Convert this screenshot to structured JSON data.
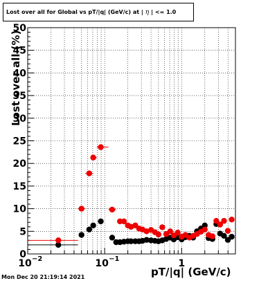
{
  "title_parts": {
    "prefix": "Lost over all for Global vs pT/|q| (GeV/c) at |",
    "symbol": "η",
    "suffix": "| <= 1.0"
  },
  "footer": {
    "datestamp": "Mon Dec 20 21:19:14 2021"
  },
  "colors": {
    "red": "#ee0000",
    "black": "#000000",
    "grid": "#000000"
  },
  "chart_data": {
    "type": "scatter",
    "title": "Lost over all for Global vs pT/|q| (GeV/c) at | η | <= 1.0",
    "xlabel": "pT/|q| (GeV/c)",
    "ylabel": "Lost over all (%)",
    "xscale": "log",
    "xlim": [
      0.01,
      5.0
    ],
    "ylim": [
      0,
      50
    ],
    "grid": true,
    "x_ticks": [
      {
        "value": 0.01,
        "label": "10",
        "exp": "−2"
      },
      {
        "value": 0.1,
        "label": "10",
        "exp": "−1"
      },
      {
        "value": 1,
        "label": "1",
        "exp": ""
      }
    ],
    "y_ticks": [
      0,
      5,
      10,
      15,
      20,
      25,
      30,
      35,
      40,
      45,
      50
    ],
    "series": [
      {
        "color": "red",
        "points": [
          {
            "x": 0.025,
            "y": 3.0,
            "xlo": 0.01,
            "xhi": 0.045
          },
          {
            "x": 0.05,
            "y": 10.0,
            "xlo": 0.045,
            "xhi": 0.056
          },
          {
            "x": 0.063,
            "y": 17.8,
            "xlo": 0.056,
            "xhi": 0.071
          },
          {
            "x": 0.071,
            "y": 21.3,
            "xlo": 0.067,
            "xhi": 0.079
          },
          {
            "x": 0.089,
            "y": 23.6,
            "xlo": 0.079,
            "xhi": 0.112
          },
          {
            "x": 0.125,
            "y": 9.8,
            "xlo": 0.112,
            "xhi": 0.141
          },
          {
            "x": 0.158,
            "y": 7.2
          },
          {
            "x": 0.178,
            "y": 7.2
          },
          {
            "x": 0.2,
            "y": 6.3
          },
          {
            "x": 0.22,
            "y": 6.0
          },
          {
            "x": 0.25,
            "y": 6.3
          },
          {
            "x": 0.28,
            "y": 5.6
          },
          {
            "x": 0.31,
            "y": 5.4
          },
          {
            "x": 0.35,
            "y": 5.0
          },
          {
            "x": 0.4,
            "y": 5.3
          },
          {
            "x": 0.45,
            "y": 4.8
          },
          {
            "x": 0.5,
            "y": 4.3
          },
          {
            "x": 0.56,
            "y": 5.9
          },
          {
            "x": 0.63,
            "y": 4.4
          },
          {
            "x": 0.71,
            "y": 5.0
          },
          {
            "x": 0.79,
            "y": 4.1
          },
          {
            "x": 0.89,
            "y": 4.7
          },
          {
            "x": 1.0,
            "y": 3.8
          },
          {
            "x": 1.12,
            "y": 4.2
          },
          {
            "x": 1.26,
            "y": 3.6
          },
          {
            "x": 1.41,
            "y": 4.0
          },
          {
            "x": 1.58,
            "y": 4.4
          },
          {
            "x": 1.78,
            "y": 4.9
          },
          {
            "x": 2.0,
            "y": 5.4
          },
          {
            "x": 2.24,
            "y": 4.2
          },
          {
            "x": 2.51,
            "y": 3.9
          },
          {
            "x": 2.82,
            "y": 7.3
          },
          {
            "x": 3.16,
            "y": 6.5
          },
          {
            "x": 3.55,
            "y": 7.3
          },
          {
            "x": 3.98,
            "y": 5.1
          },
          {
            "x": 4.47,
            "y": 7.6
          }
        ]
      },
      {
        "color": "black",
        "points": [
          {
            "x": 0.025,
            "y": 2.0,
            "xlo": 0.01,
            "xhi": 0.045
          },
          {
            "x": 0.05,
            "y": 4.2
          },
          {
            "x": 0.063,
            "y": 5.4
          },
          {
            "x": 0.071,
            "y": 6.3
          },
          {
            "x": 0.089,
            "y": 7.2
          },
          {
            "x": 0.125,
            "y": 3.6
          },
          {
            "x": 0.141,
            "y": 2.6
          },
          {
            "x": 0.158,
            "y": 2.6
          },
          {
            "x": 0.178,
            "y": 2.7
          },
          {
            "x": 0.2,
            "y": 2.8
          },
          {
            "x": 0.22,
            "y": 2.8
          },
          {
            "x": 0.25,
            "y": 2.8
          },
          {
            "x": 0.28,
            "y": 2.8
          },
          {
            "x": 0.31,
            "y": 2.9
          },
          {
            "x": 0.35,
            "y": 3.1
          },
          {
            "x": 0.4,
            "y": 3.0
          },
          {
            "x": 0.45,
            "y": 2.9
          },
          {
            "x": 0.5,
            "y": 2.8
          },
          {
            "x": 0.56,
            "y": 3.0
          },
          {
            "x": 0.63,
            "y": 3.3
          },
          {
            "x": 0.71,
            "y": 3.6
          },
          {
            "x": 0.79,
            "y": 3.2
          },
          {
            "x": 0.89,
            "y": 3.7
          },
          {
            "x": 1.0,
            "y": 3.2
          },
          {
            "x": 1.12,
            "y": 3.7
          },
          {
            "x": 1.26,
            "y": 4.0
          },
          {
            "x": 1.41,
            "y": 3.6
          },
          {
            "x": 1.58,
            "y": 5.0
          },
          {
            "x": 1.78,
            "y": 5.6
          },
          {
            "x": 2.0,
            "y": 6.3
          },
          {
            "x": 2.24,
            "y": 3.5
          },
          {
            "x": 2.51,
            "y": 3.3
          },
          {
            "x": 2.82,
            "y": 6.6
          },
          {
            "x": 3.16,
            "y": 4.5
          },
          {
            "x": 3.55,
            "y": 4.0
          },
          {
            "x": 3.98,
            "y": 3.1
          },
          {
            "x": 4.47,
            "y": 3.8
          }
        ]
      }
    ]
  }
}
